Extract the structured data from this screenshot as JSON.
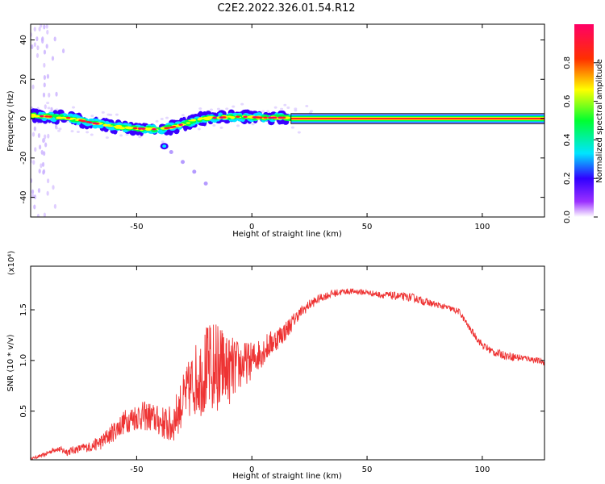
{
  "title": "C2E2.2022.326.01.54.R12",
  "chart_data": [
    {
      "type": "heatmap",
      "xlabel": "Height of straight line (km)",
      "ylabel": "Frequency (Hz)",
      "xlim": [
        -96,
        127
      ],
      "ylim": [
        -50,
        48
      ],
      "xticks": [
        -50,
        0,
        50,
        100
      ],
      "yticks": [
        -40,
        -20,
        0,
        20,
        40
      ],
      "colorbar": {
        "label": "Normalized spectral amplitude",
        "range": [
          0,
          1
        ],
        "ticks": [
          "0.0",
          "0.2",
          "0.4",
          "0.6",
          "0.8"
        ],
        "colors": [
          "#ffffff",
          "#9b30ff",
          "#3000ff",
          "#00e5ff",
          "#00ff30",
          "#ffff00",
          "#ff3000",
          "#ff0066"
        ]
      },
      "ridge": {
        "x": [
          -95,
          -80,
          -70,
          -60,
          -50,
          -40,
          -33,
          -28,
          -22,
          -15,
          -5,
          5,
          15,
          18,
          127
        ],
        "y": [
          1.5,
          0.5,
          -2,
          -4,
          -5,
          -5.5,
          -4,
          -2,
          0,
          0.5,
          1,
          0.5,
          0.5,
          0,
          0
        ]
      },
      "branch": {
        "x": [
          -38,
          -35,
          -30,
          -25,
          -20
        ],
        "y": [
          -14,
          -17,
          -22,
          -27,
          -33
        ]
      }
    },
    {
      "type": "line",
      "xlabel": "Height of straight line (km)",
      "ylabel": "SNR (10 * v/v)",
      "y_multiplier": "(x10⁴)",
      "xlim": [
        -96,
        127
      ],
      "ylim": [
        0.02,
        1.93
      ],
      "xticks": [
        -50,
        0,
        50,
        100
      ],
      "yticks": [
        "0.5",
        "1.0",
        "1.5"
      ],
      "ytick_values": [
        0.5,
        1.0,
        1.5
      ],
      "color": "#ee3333",
      "series": [
        {
          "x": [
            -96,
            -90,
            -85,
            -80,
            -75,
            -70,
            -65,
            -60,
            -55,
            -50,
            -45,
            -40,
            -35,
            -30,
            -25,
            -20,
            -15,
            -10,
            -5,
            0,
            5,
            10,
            15,
            20,
            25,
            30,
            35,
            40,
            45,
            50,
            55,
            60,
            65,
            70,
            75,
            80,
            85,
            90,
            95,
            100,
            105,
            110,
            115,
            120,
            127
          ],
          "values": [
            0.03,
            0.07,
            0.13,
            0.1,
            0.13,
            0.15,
            0.2,
            0.3,
            0.4,
            0.45,
            0.45,
            0.4,
            0.35,
            0.6,
            0.8,
            0.9,
            0.95,
            0.9,
            0.95,
            1.0,
            1.1,
            1.2,
            1.3,
            1.45,
            1.55,
            1.62,
            1.66,
            1.68,
            1.68,
            1.67,
            1.65,
            1.64,
            1.63,
            1.62,
            1.58,
            1.55,
            1.52,
            1.48,
            1.3,
            1.15,
            1.08,
            1.05,
            1.03,
            1.02,
            0.98
          ],
          "noise": [
            0.01,
            0.02,
            0.03,
            0.04,
            0.04,
            0.05,
            0.08,
            0.1,
            0.12,
            0.14,
            0.15,
            0.15,
            0.2,
            0.25,
            0.35,
            0.45,
            0.45,
            0.35,
            0.25,
            0.18,
            0.15,
            0.12,
            0.1,
            0.06,
            0.05,
            0.04,
            0.04,
            0.03,
            0.03,
            0.03,
            0.03,
            0.04,
            0.04,
            0.04,
            0.04,
            0.03,
            0.03,
            0.03,
            0.03,
            0.04,
            0.04,
            0.04,
            0.04,
            0.03,
            0.03
          ]
        }
      ]
    }
  ]
}
